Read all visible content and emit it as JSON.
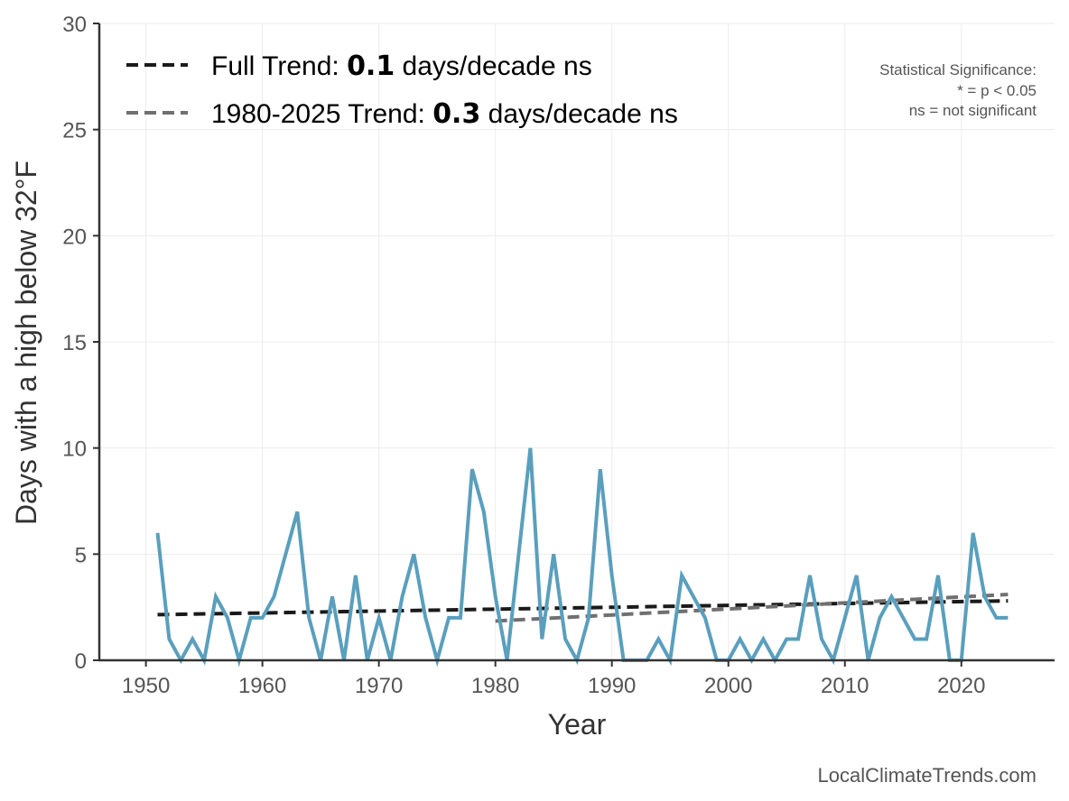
{
  "chart_data": {
    "type": "line",
    "title": "",
    "xlabel": "Year",
    "ylabel": "Days with a high below 32°F",
    "xlim": [
      1946,
      2028
    ],
    "ylim": [
      0,
      30
    ],
    "x_ticks": [
      1950,
      1960,
      1970,
      1980,
      1990,
      2000,
      2010,
      2020
    ],
    "y_ticks": [
      0,
      5,
      10,
      15,
      20,
      25,
      30
    ],
    "grid": true,
    "legend_position": "top-left",
    "series": [
      {
        "name": "",
        "color": "#5a9fbd",
        "style": "solid",
        "x": [
          1951,
          1952,
          1953,
          1954,
          1955,
          1956,
          1957,
          1958,
          1959,
          1960,
          1961,
          1962,
          1963,
          1964,
          1965,
          1966,
          1967,
          1968,
          1969,
          1970,
          1971,
          1972,
          1973,
          1974,
          1975,
          1976,
          1977,
          1978,
          1979,
          1980,
          1981,
          1982,
          1983,
          1984,
          1985,
          1986,
          1987,
          1988,
          1989,
          1990,
          1991,
          1992,
          1993,
          1994,
          1995,
          1996,
          1997,
          1998,
          1999,
          2000,
          2001,
          2002,
          2003,
          2004,
          2005,
          2006,
          2007,
          2008,
          2009,
          2010,
          2011,
          2012,
          2013,
          2014,
          2015,
          2016,
          2017,
          2018,
          2019,
          2020,
          2021,
          2022,
          2023,
          2024
        ],
        "y": [
          6,
          1,
          0,
          1,
          0,
          3,
          2,
          0,
          2,
          2,
          3,
          5,
          7,
          2,
          0,
          3,
          0,
          4,
          0,
          2,
          0,
          3,
          5,
          2,
          0,
          2,
          2,
          9,
          7,
          3,
          0,
          5,
          10,
          1,
          5,
          1,
          0,
          2,
          9,
          4,
          0,
          0,
          0,
          1,
          0,
          4,
          3,
          2,
          0,
          0,
          1,
          0,
          1,
          0,
          1,
          1,
          4,
          1,
          0,
          2,
          4,
          0,
          2,
          3,
          2,
          1,
          1,
          4,
          0,
          0,
          6,
          3,
          2,
          2
        ]
      }
    ],
    "trends": [
      {
        "label": "Full Trend: ",
        "value": "0.1",
        "suffix": " days/decade ns",
        "color": "#1a1a1a",
        "x": [
          1951,
          2024
        ],
        "y": [
          2.15,
          2.8
        ]
      },
      {
        "label": "1980-2025 Trend: ",
        "value": "0.3",
        "suffix": " days/decade ns",
        "color": "#707070",
        "x": [
          1980,
          2024
        ],
        "y": [
          1.85,
          3.1
        ]
      }
    ],
    "significance_note": [
      "Statistical Significance:",
      "* = p < 0.05",
      "ns = not significant"
    ],
    "source": "LocalClimateTrends.com"
  }
}
